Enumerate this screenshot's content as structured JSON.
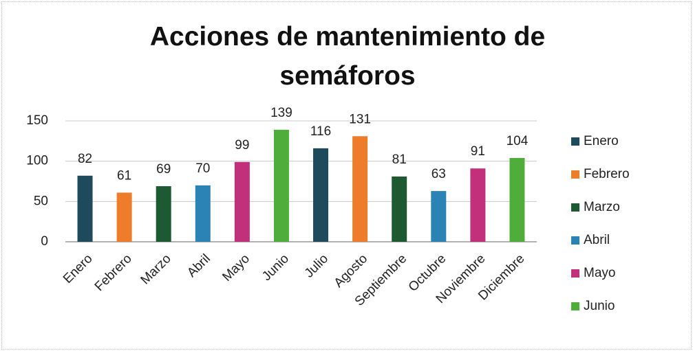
{
  "chart_data": {
    "type": "bar",
    "title": "Acciones de mantenimiento de semáforos",
    "categories": [
      "Enero",
      "Febrero",
      "Marzo",
      "Abril",
      "Mayo",
      "Junio",
      "Julio",
      "Agosto",
      "Septiembre",
      "Octubre",
      "Noviembre",
      "Diciembre"
    ],
    "values": [
      82,
      61,
      69,
      70,
      99,
      139,
      116,
      131,
      81,
      63,
      91,
      104
    ],
    "colors": [
      "#1f4a5c",
      "#ee7d2b",
      "#1d5a32",
      "#2b82b5",
      "#c2307c",
      "#4fae3b",
      "#1f4a5c",
      "#ee7d2b",
      "#1d5a32",
      "#2b82b5",
      "#c2307c",
      "#4fae3b"
    ],
    "legend": [
      {
        "name": "Enero",
        "color": "#1f4a5c"
      },
      {
        "name": "Febrero",
        "color": "#ee7d2b"
      },
      {
        "name": "Marzo",
        "color": "#1d5a32"
      },
      {
        "name": "Abril",
        "color": "#2b82b5"
      },
      {
        "name": "Mayo",
        "color": "#c2307c"
      },
      {
        "name": "Junio",
        "color": "#4fae3b"
      }
    ],
    "ylim": [
      0,
      150
    ],
    "yticks": [
      0,
      50,
      100,
      150
    ],
    "grid": true
  }
}
